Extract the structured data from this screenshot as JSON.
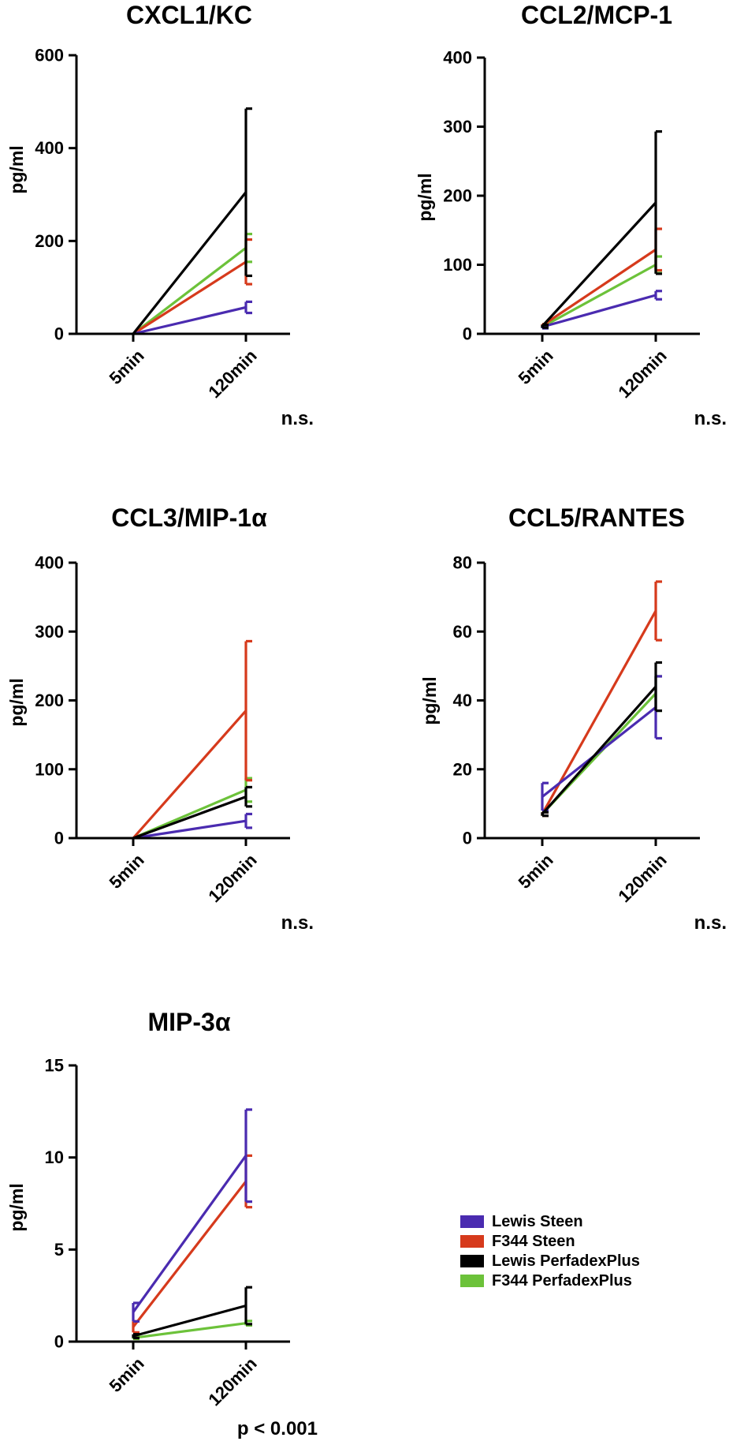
{
  "chart_data": [
    {
      "type": "line",
      "title": "CXCL1/KC",
      "ylabel": "pg/ml",
      "xlabel": "",
      "categories": [
        "5min",
        "120min"
      ],
      "ylim": [
        0,
        600
      ],
      "yticks": [
        0,
        200,
        400,
        600
      ],
      "stat": "n.s.",
      "series": [
        {
          "name": "Lewis Steen",
          "color": "#4a2bb0",
          "values": [
            0,
            57
          ],
          "err": [
            0,
            12
          ]
        },
        {
          "name": "F344 Steen",
          "color": "#d63a1c",
          "values": [
            0,
            155
          ],
          "err": [
            0,
            48
          ]
        },
        {
          "name": "Lewis PerfadexPlus",
          "color": "#000000",
          "values": [
            0,
            305
          ],
          "err": [
            0,
            180
          ]
        },
        {
          "name": "F344 PerfadexPlus",
          "color": "#6cc23a",
          "values": [
            0,
            185
          ],
          "err": [
            0,
            30
          ]
        }
      ]
    },
    {
      "type": "line",
      "title": "CCL2/MCP-1",
      "ylabel": "pg/ml",
      "xlabel": "",
      "categories": [
        "5min",
        "120min"
      ],
      "ylim": [
        0,
        400
      ],
      "yticks": [
        0,
        100,
        200,
        300,
        400
      ],
      "stat": "n.s.",
      "series": [
        {
          "name": "Lewis Steen",
          "color": "#4a2bb0",
          "values": [
            10,
            56
          ],
          "err": [
            2,
            6
          ]
        },
        {
          "name": "F344 Steen",
          "color": "#d63a1c",
          "values": [
            12,
            122
          ],
          "err": [
            2,
            30
          ]
        },
        {
          "name": "Lewis PerfadexPlus",
          "color": "#000000",
          "values": [
            11,
            190
          ],
          "err": [
            2,
            103
          ]
        },
        {
          "name": "F344 PerfadexPlus",
          "color": "#6cc23a",
          "values": [
            10,
            100
          ],
          "err": [
            2,
            12
          ]
        }
      ]
    },
    {
      "type": "line",
      "title": "CCL3/MIP-1α",
      "ylabel": "pg/ml",
      "xlabel": "",
      "categories": [
        "5min",
        "120min"
      ],
      "ylim": [
        0,
        400
      ],
      "yticks": [
        0,
        100,
        200,
        300,
        400
      ],
      "stat": "n.s.",
      "series": [
        {
          "name": "Lewis Steen",
          "color": "#4a2bb0",
          "values": [
            0,
            25
          ],
          "err": [
            0,
            10
          ]
        },
        {
          "name": "F344 Steen",
          "color": "#d63a1c",
          "values": [
            0,
            185
          ],
          "err": [
            0,
            101
          ]
        },
        {
          "name": "Lewis PerfadexPlus",
          "color": "#000000",
          "values": [
            0,
            60
          ],
          "err": [
            0,
            14
          ]
        },
        {
          "name": "F344 PerfadexPlus",
          "color": "#6cc23a",
          "values": [
            0,
            70
          ],
          "err": [
            0,
            17
          ]
        }
      ]
    },
    {
      "type": "line",
      "title": "CCL5/RANTES",
      "ylabel": "pg/ml",
      "xlabel": "",
      "categories": [
        "5min",
        "120min"
      ],
      "ylim": [
        0,
        80
      ],
      "yticks": [
        0,
        20,
        40,
        60,
        80
      ],
      "stat": "n.s.",
      "series": [
        {
          "name": "Lewis Steen",
          "color": "#4a2bb0",
          "values": [
            12,
            38
          ],
          "err": [
            4,
            9
          ]
        },
        {
          "name": "F344 Steen",
          "color": "#d63a1c",
          "values": [
            7,
            66
          ],
          "err": [
            0.5,
            8.5
          ]
        },
        {
          "name": "Lewis PerfadexPlus",
          "color": "#000000",
          "values": [
            7,
            44
          ],
          "err": [
            0.5,
            7
          ]
        },
        {
          "name": "F344 PerfadexPlus",
          "color": "#6cc23a",
          "values": [
            7,
            42
          ],
          "err": [
            0.5,
            5
          ]
        }
      ]
    },
    {
      "type": "line",
      "title": "MIP-3α",
      "ylabel": "pg/ml",
      "xlabel": "",
      "categories": [
        "5min",
        "120min"
      ],
      "ylim": [
        0,
        15
      ],
      "yticks": [
        0,
        5,
        10,
        15
      ],
      "stat": "p < 0.001",
      "series": [
        {
          "name": "Lewis Steen",
          "color": "#4a2bb0",
          "values": [
            1.6,
            10.1
          ],
          "err": [
            0.5,
            2.5
          ]
        },
        {
          "name": "F344 Steen",
          "color": "#d63a1c",
          "values": [
            0.8,
            8.7
          ],
          "err": [
            0.3,
            1.4
          ]
        },
        {
          "name": "Lewis PerfadexPlus",
          "color": "#000000",
          "values": [
            0.3,
            1.95
          ],
          "err": [
            0.1,
            1.0
          ]
        },
        {
          "name": "F344 PerfadexPlus",
          "color": "#6cc23a",
          "values": [
            0.2,
            1.0
          ],
          "err": [
            0.05,
            0.12
          ]
        }
      ]
    }
  ],
  "legend": {
    "placement": "bottom-right",
    "items": [
      {
        "label": "Lewis Steen",
        "color": "#4a2bb0"
      },
      {
        "label": "F344 Steen",
        "color": "#d63a1c"
      },
      {
        "label": "Lewis PerfadexPlus",
        "color": "#000000"
      },
      {
        "label": "F344 PerfadexPlus",
        "color": "#6cc23a"
      }
    ]
  }
}
